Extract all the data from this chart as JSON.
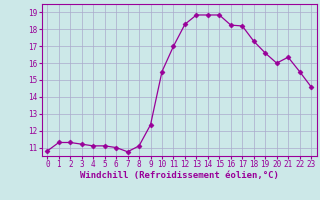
{
  "x": [
    0,
    1,
    2,
    3,
    4,
    5,
    6,
    7,
    8,
    9,
    10,
    11,
    12,
    13,
    14,
    15,
    16,
    17,
    18,
    19,
    20,
    21,
    22,
    23
  ],
  "y": [
    10.8,
    11.3,
    11.3,
    11.2,
    11.1,
    11.1,
    11.0,
    10.75,
    11.1,
    12.35,
    15.5,
    17.0,
    18.3,
    18.85,
    18.85,
    18.85,
    18.25,
    18.2,
    17.3,
    16.6,
    16.0,
    16.35,
    15.5,
    14.6
  ],
  "line_color": "#990099",
  "marker": "D",
  "marker_size": 2.5,
  "bg_color": "#cce8e8",
  "grid_color": "#aaaacc",
  "xlabel": "Windchill (Refroidissement éolien,°C)",
  "xlabel_color": "#990099",
  "tick_color": "#990099",
  "ylim": [
    10.5,
    19.5
  ],
  "yticks": [
    11,
    12,
    13,
    14,
    15,
    16,
    17,
    18,
    19
  ],
  "xticks": [
    0,
    1,
    2,
    3,
    4,
    5,
    6,
    7,
    8,
    9,
    10,
    11,
    12,
    13,
    14,
    15,
    16,
    17,
    18,
    19,
    20,
    21,
    22,
    23
  ],
  "spine_color": "#990099",
  "tick_fontsize": 5.5,
  "xlabel_fontsize": 6.5
}
